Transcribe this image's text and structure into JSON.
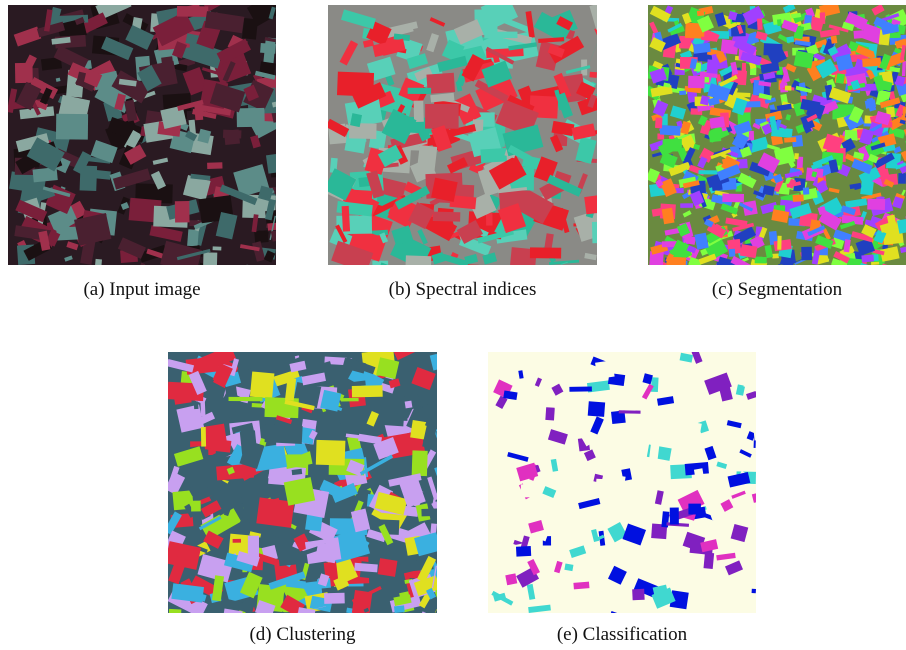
{
  "figure": {
    "panels": [
      {
        "caption": "(a) Input image"
      },
      {
        "caption": "(b) Spectral indices"
      },
      {
        "caption": "(c) Segmentation"
      },
      {
        "caption": "(d) Clustering"
      },
      {
        "caption": "(e) Classification"
      }
    ]
  }
}
